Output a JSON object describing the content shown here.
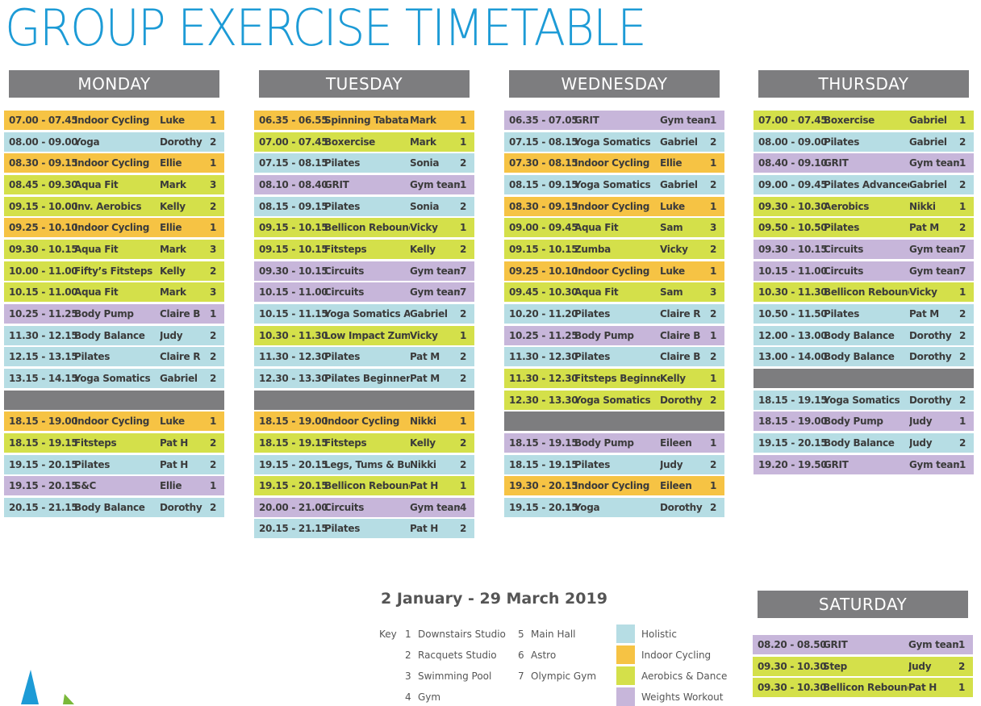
{
  "title": "GROUP EXERCISE TIMETABLE",
  "date_range": "2 January - 29 March 2019",
  "colors": {
    "holistic": "#b6dde4",
    "indoor_cycling": "#f6c344",
    "aerobics_dance": "#d4e04a",
    "weights_workout": "#c7b6da",
    "header": "#7d7d7f",
    "title": "#1d9bd6"
  },
  "key": {
    "label": "Key",
    "studios": [
      {
        "num": "1",
        "name": "Downstairs Studio"
      },
      {
        "num": "2",
        "name": "Racquets Studio"
      },
      {
        "num": "3",
        "name": "Swimming Pool"
      },
      {
        "num": "4",
        "name": "Gym"
      },
      {
        "num": "5",
        "name": "Main Hall"
      },
      {
        "num": "6",
        "name": "Astro"
      },
      {
        "num": "7",
        "name": "Olympic Gym"
      }
    ],
    "categories": [
      {
        "name": "Holistic",
        "color": "#b6dde4"
      },
      {
        "name": "Indoor Cycling",
        "color": "#f6c344"
      },
      {
        "name": "Aerobics & Dance",
        "color": "#d4e04a"
      },
      {
        "name": "Weights Workout",
        "color": "#c7b6da"
      }
    ]
  },
  "days": [
    {
      "name": "MONDAY",
      "rows": [
        {
          "time": "07.00 - 07.45",
          "cls": "Indoor Cycling",
          "instructor": "Luke",
          "studio": "1",
          "cat": "c"
        },
        {
          "time": "08.00 - 09.00",
          "cls": "Yoga",
          "instructor": "Dorothy",
          "studio": "2",
          "cat": "h"
        },
        {
          "time": "08.30 - 09.15",
          "cls": "Indoor Cycling",
          "instructor": "Ellie",
          "studio": "1",
          "cat": "c"
        },
        {
          "time": "08.45 - 09.30",
          "cls": "Aqua Fit",
          "instructor": "Mark",
          "studio": "3",
          "cat": "a"
        },
        {
          "time": "09.15 - 10.00",
          "cls": "Inv. Aerobics",
          "instructor": "Kelly",
          "studio": "2",
          "cat": "a"
        },
        {
          "time": "09.25 - 10.10",
          "cls": "Indoor Cycling",
          "instructor": "Ellie",
          "studio": "1",
          "cat": "c"
        },
        {
          "time": "09.30 - 10.15",
          "cls": "Aqua Fit",
          "instructor": "Mark",
          "studio": "3",
          "cat": "a"
        },
        {
          "time": "10.00 - 11.00",
          "cls": "Fifty’s Fitsteps",
          "instructor": "Kelly",
          "studio": "2",
          "cat": "a"
        },
        {
          "time": "10.15 - 11.00",
          "cls": "Aqua Fit",
          "instructor": "Mark",
          "studio": "3",
          "cat": "a"
        },
        {
          "time": "10.25 - 11.25",
          "cls": "Body Pump",
          "instructor": "Claire B",
          "studio": "1",
          "cat": "w"
        },
        {
          "time": "11.30 - 12.15",
          "cls": "Body Balance",
          "instructor": "Judy",
          "studio": "2",
          "cat": "h"
        },
        {
          "time": "12.15 - 13.15",
          "cls": "Pilates",
          "instructor": "Claire R",
          "studio": "2",
          "cat": "h"
        },
        {
          "time": "13.15 - 14.15",
          "cls": "Yoga Somatics",
          "instructor": "Gabriel",
          "studio": "2",
          "cat": "h"
        },
        {
          "gap": true
        },
        {
          "time": "18.15 - 19.00",
          "cls": "Indoor Cycling",
          "instructor": "Luke",
          "studio": "1",
          "cat": "c"
        },
        {
          "time": "18.15 - 19.15",
          "cls": "Fitsteps",
          "instructor": "Pat H",
          "studio": "2",
          "cat": "a"
        },
        {
          "time": "19.15 - 20.15",
          "cls": "Pilates",
          "instructor": "Pat H",
          "studio": "2",
          "cat": "h"
        },
        {
          "time": "19.15 - 20.15",
          "cls": "S&C",
          "instructor": "Ellie",
          "studio": "1",
          "cat": "w"
        },
        {
          "time": "20.15 - 21.15",
          "cls": "Body Balance",
          "instructor": "Dorothy",
          "studio": "2",
          "cat": "h"
        }
      ]
    },
    {
      "name": "TUESDAY",
      "rows": [
        {
          "time": "06.35 - 06.55",
          "cls": "Spinning Tabata",
          "instructor": "Mark",
          "studio": "1",
          "cat": "c"
        },
        {
          "time": "07.00 - 07.45",
          "cls": "Boxercise",
          "instructor": "Mark",
          "studio": "1",
          "cat": "a"
        },
        {
          "time": "07.15 - 08.15",
          "cls": "Pilates",
          "instructor": "Sonia",
          "studio": "2",
          "cat": "h"
        },
        {
          "time": "08.10 - 08.40",
          "cls": "GRIT",
          "instructor": "Gym team",
          "studio": "1",
          "cat": "w"
        },
        {
          "time": "08.15 - 09.15",
          "cls": "Pilates",
          "instructor": "Sonia",
          "studio": "2",
          "cat": "h"
        },
        {
          "time": "09.15 - 10.15",
          "cls": "Bellicon Rebound",
          "instructor": "Vicky",
          "studio": "1",
          "cat": "a"
        },
        {
          "time": "09.15 - 10.15",
          "cls": "Fitsteps",
          "instructor": "Kelly",
          "studio": "2",
          "cat": "a"
        },
        {
          "time": "09.30 - 10.15",
          "cls": "Circuits",
          "instructor": "Gym team",
          "studio": "7",
          "cat": "w"
        },
        {
          "time": "10.15 - 11.00",
          "cls": "Circuits",
          "instructor": "Gym team",
          "studio": "7",
          "cat": "w"
        },
        {
          "time": "10.15 - 11.15",
          "cls": "Yoga Somatics Adv.",
          "instructor": "Gabriel",
          "studio": "2",
          "cat": "h"
        },
        {
          "time": "10.30 - 11.30",
          "cls": "Low Impact Zumba",
          "instructor": "Vicky",
          "studio": "1",
          "cat": "a"
        },
        {
          "time": "11.30 - 12.30",
          "cls": "Pilates",
          "instructor": "Pat M",
          "studio": "2",
          "cat": "h"
        },
        {
          "time": "12.30 - 13.30",
          "cls": "Pilates Beginners",
          "instructor": "Pat M",
          "studio": "2",
          "cat": "h"
        },
        {
          "gap": true
        },
        {
          "time": "18.15 - 19.00",
          "cls": "Indoor Cycling",
          "instructor": "Nikki",
          "studio": "1",
          "cat": "c"
        },
        {
          "time": "18.15 - 19.15",
          "cls": "Fitsteps",
          "instructor": "Kelly",
          "studio": "2",
          "cat": "a"
        },
        {
          "time": "19.15 - 20.15",
          "cls": "Legs, Tums & Bums",
          "instructor": "Nikki",
          "studio": "2",
          "cat": "h"
        },
        {
          "time": "19.15 - 20.15",
          "cls": "Bellicon Rebound",
          "instructor": "Pat H",
          "studio": "1",
          "cat": "a"
        },
        {
          "time": "20.00 - 21.00",
          "cls": "Circuits",
          "instructor": "Gym team",
          "studio": "4",
          "cat": "w"
        },
        {
          "time": "20.15 - 21.15",
          "cls": "Pilates",
          "instructor": "Pat H",
          "studio": "2",
          "cat": "h"
        }
      ]
    },
    {
      "name": "WEDNESDAY",
      "rows": [
        {
          "time": "06.35 - 07.05",
          "cls": "GRIT",
          "instructor": "Gym team",
          "studio": "1",
          "cat": "w"
        },
        {
          "time": "07.15 - 08.15",
          "cls": "Yoga Somatics",
          "instructor": "Gabriel",
          "studio": "2",
          "cat": "h"
        },
        {
          "time": "07.30 - 08.15",
          "cls": "Indoor Cycling",
          "instructor": "Ellie",
          "studio": "1",
          "cat": "c"
        },
        {
          "time": "08.15 - 09.15",
          "cls": "Yoga Somatics",
          "instructor": "Gabriel",
          "studio": "2",
          "cat": "h"
        },
        {
          "time": "08.30 - 09.15",
          "cls": "Indoor Cycling",
          "instructor": "Luke",
          "studio": "1",
          "cat": "c"
        },
        {
          "time": "09.00 - 09.45",
          "cls": "Aqua Fit",
          "instructor": "Sam",
          "studio": "3",
          "cat": "a"
        },
        {
          "time": "09.15 - 10.15",
          "cls": "Zumba",
          "instructor": "Vicky",
          "studio": "2",
          "cat": "a"
        },
        {
          "time": "09.25 - 10.10",
          "cls": "Indoor Cycling",
          "instructor": "Luke",
          "studio": "1",
          "cat": "c"
        },
        {
          "time": "09.45 - 10.30",
          "cls": "Aqua Fit",
          "instructor": "Sam",
          "studio": "3",
          "cat": "a"
        },
        {
          "time": "10.20 - 11.20",
          "cls": "Pilates",
          "instructor": "Claire R",
          "studio": "2",
          "cat": "h"
        },
        {
          "time": "10.25 - 11.25",
          "cls": "Body Pump",
          "instructor": "Claire B",
          "studio": "1",
          "cat": "w"
        },
        {
          "time": "11.30 - 12.30",
          "cls": "Pilates",
          "instructor": "Claire B",
          "studio": "2",
          "cat": "h"
        },
        {
          "time": "11.30 - 12.30",
          "cls": "Fitsteps Beginners",
          "instructor": "Kelly",
          "studio": "1",
          "cat": "a"
        },
        {
          "time": "12.30 - 13.30",
          "cls": "Yoga Somatics",
          "instructor": "Dorothy",
          "studio": "2",
          "cat": "a"
        },
        {
          "gap": true
        },
        {
          "time": "18.15 - 19.15",
          "cls": "Body Pump",
          "instructor": "Eileen",
          "studio": "1",
          "cat": "w"
        },
        {
          "time": "18.15 - 19.15",
          "cls": "Pilates",
          "instructor": "Judy",
          "studio": "2",
          "cat": "h"
        },
        {
          "time": "19.30 - 20.15",
          "cls": "Indoor Cycling",
          "instructor": "Eileen",
          "studio": "1",
          "cat": "c"
        },
        {
          "time": "19.15 - 20.15",
          "cls": "Yoga",
          "instructor": "Dorothy",
          "studio": "2",
          "cat": "h"
        }
      ]
    },
    {
      "name": "THURSDAY",
      "rows": [
        {
          "time": "07.00 - 07.45",
          "cls": "Boxercise",
          "instructor": "Gabriel",
          "studio": "1",
          "cat": "a"
        },
        {
          "time": "08.00 - 09.00",
          "cls": "Pilates",
          "instructor": "Gabriel",
          "studio": "2",
          "cat": "h"
        },
        {
          "time": "08.40 - 09.10",
          "cls": "GRIT",
          "instructor": "Gym team",
          "studio": "1",
          "cat": "w"
        },
        {
          "time": "09.00 - 09.45",
          "cls": "Pilates Advanced",
          "instructor": "Gabriel",
          "studio": "2",
          "cat": "h"
        },
        {
          "time": "09.30 - 10.30",
          "cls": "Aerobics",
          "instructor": "Nikki",
          "studio": "1",
          "cat": "a"
        },
        {
          "time": "09.50 - 10.50",
          "cls": "Pilates",
          "instructor": "Pat M",
          "studio": "2",
          "cat": "a"
        },
        {
          "time": "09.30 - 10.15",
          "cls": "Circuits",
          "instructor": "Gym team",
          "studio": "7",
          "cat": "w"
        },
        {
          "time": "10.15 - 11.00",
          "cls": "Circuits",
          "instructor": "Gym team",
          "studio": "7",
          "cat": "w"
        },
        {
          "time": "10.30 - 11.30",
          "cls": "Bellicon Rebound",
          "instructor": "Vicky",
          "studio": "1",
          "cat": "a"
        },
        {
          "time": "10.50 - 11.50",
          "cls": "Pilates",
          "instructor": "Pat M",
          "studio": "2",
          "cat": "h"
        },
        {
          "time": "12.00 - 13.00",
          "cls": "Body Balance",
          "instructor": "Dorothy",
          "studio": "2",
          "cat": "h"
        },
        {
          "time": "13.00 - 14.00",
          "cls": "Body Balance",
          "instructor": "Dorothy",
          "studio": "2",
          "cat": "h"
        },
        {
          "gap": true
        },
        {
          "time": "18.15 - 19.15",
          "cls": "Yoga Somatics",
          "instructor": "Dorothy",
          "studio": "2",
          "cat": "h"
        },
        {
          "time": "18.15 - 19.00",
          "cls": "Body Pump",
          "instructor": "Judy",
          "studio": "1",
          "cat": "w"
        },
        {
          "time": "19.15 - 20.15",
          "cls": "Body Balance",
          "instructor": "Judy",
          "studio": "2",
          "cat": "h"
        },
        {
          "time": "19.20 - 19.50",
          "cls": "GRIT",
          "instructor": "Gym team",
          "studio": "1",
          "cat": "w"
        }
      ]
    },
    {
      "name": "SATURDAY",
      "rows": [
        {
          "time": "08.20 - 08.50",
          "cls": "GRIT",
          "instructor": "Gym team",
          "studio": "1",
          "cat": "w"
        },
        {
          "time": "09.30 - 10.30",
          "cls": "Step",
          "instructor": "Judy",
          "studio": "2",
          "cat": "a"
        },
        {
          "time": "09.30 - 10.30",
          "cls": "Bellicon Rebound",
          "instructor": "Pat H",
          "studio": "1",
          "cat": "a"
        }
      ]
    }
  ]
}
